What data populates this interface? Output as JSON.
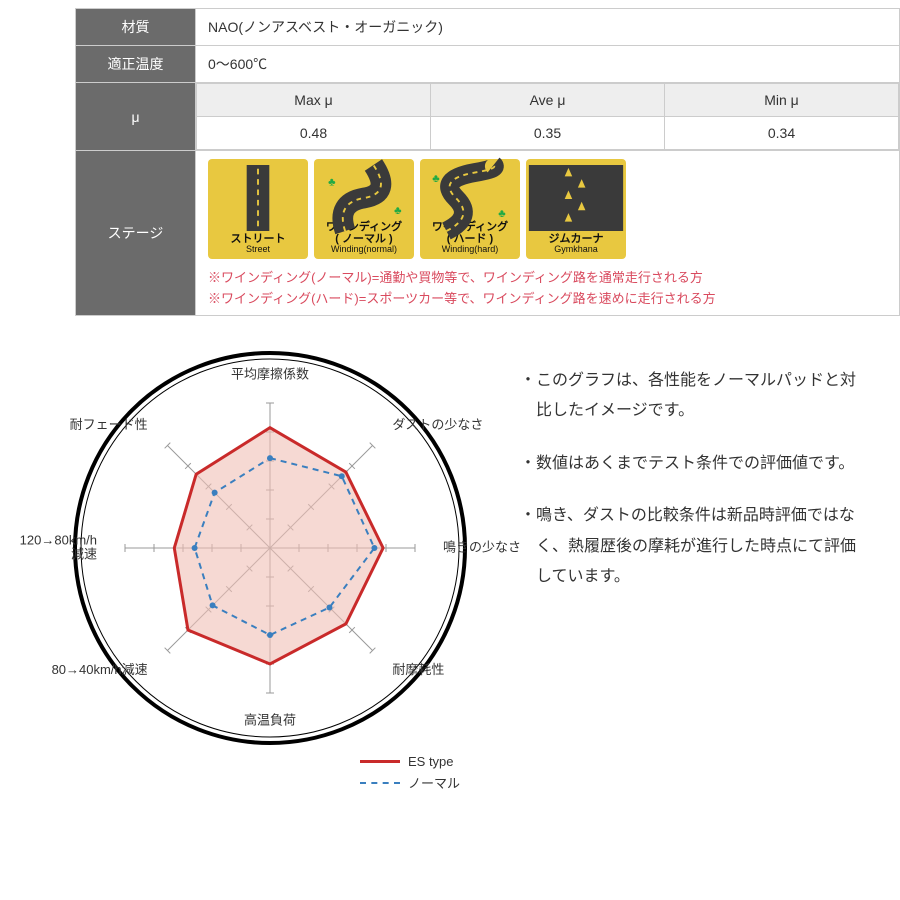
{
  "spec": {
    "material_label": "材質",
    "material_value": "NAO(ノンアスベスト・オーガニック)",
    "temp_label": "適正温度",
    "temp_value": "0〜600℃",
    "mu_label": "μ",
    "mu_headers": [
      "Max μ",
      "Ave μ",
      "Min μ"
    ],
    "mu_values": [
      "0.48",
      "0.35",
      "0.34"
    ],
    "stage_label": "ステージ",
    "stages": [
      {
        "jp": "ストリート",
        "en": "Street",
        "road": "straight"
      },
      {
        "jp": "ワインディング\n( ノーマル )",
        "en": "Winding(normal)",
        "road": "wind1"
      },
      {
        "jp": "ワインディング\n( ハード )",
        "en": "Winding(hard)",
        "road": "wind2"
      },
      {
        "jp": "ジムカーナ",
        "en": "Gymkhana",
        "road": "cones"
      }
    ],
    "stage_notes": [
      "※ワインディング(ノーマル)=通勤や買物等で、ワインディング路を通常走行される方",
      "※ワインディング(ハード)=スポーツカー等で、ワインディング路を速めに走行される方"
    ]
  },
  "radar": {
    "type": "radar",
    "axes": [
      "平均摩擦係数",
      "ダストの少なさ",
      "鳴きの少なさ",
      "耐摩耗性",
      "高温負荷",
      "80→40km/h減速",
      "120→80km/h\n減速",
      "耐フェード性"
    ],
    "axis_count": 8,
    "max": 1.0,
    "tick_count": 5,
    "series": [
      {
        "name": "ES type",
        "color": "#c92a2a",
        "fill": "#f0bfb5",
        "fill_opacity": 0.6,
        "stroke_width": 3,
        "dash": null,
        "values": [
          0.83,
          0.74,
          0.78,
          0.74,
          0.8,
          0.8,
          0.66,
          0.72
        ]
      },
      {
        "name": "ノーマル",
        "color": "#3a7fbf",
        "fill": null,
        "stroke_width": 2,
        "dash": "6 5",
        "marker": true,
        "values": [
          0.62,
          0.7,
          0.72,
          0.58,
          0.6,
          0.56,
          0.52,
          0.54
        ]
      }
    ],
    "circle_color": "#000",
    "circle_stroke": 4,
    "axis_color": "#999",
    "tick_color": "#999",
    "label_fontsize": 13,
    "label_color": "#333",
    "background": "#ffffff"
  },
  "legend": {
    "es": "ES type",
    "normal": "ノーマル"
  },
  "notes": [
    "・このグラフは、各性能をノーマルパッドと対比したイメージです。",
    "・数値はあくまでテスト条件での評価値です。",
    "・鳴き、ダストの比較条件は新品時評価ではなく、熱履歴後の摩耗が進行した時点にて評価しています。"
  ],
  "colors": {
    "table_header_bg": "#6b6b6b",
    "stage_icon_bg": "#e8c840",
    "note_color": "#d94a5e"
  }
}
